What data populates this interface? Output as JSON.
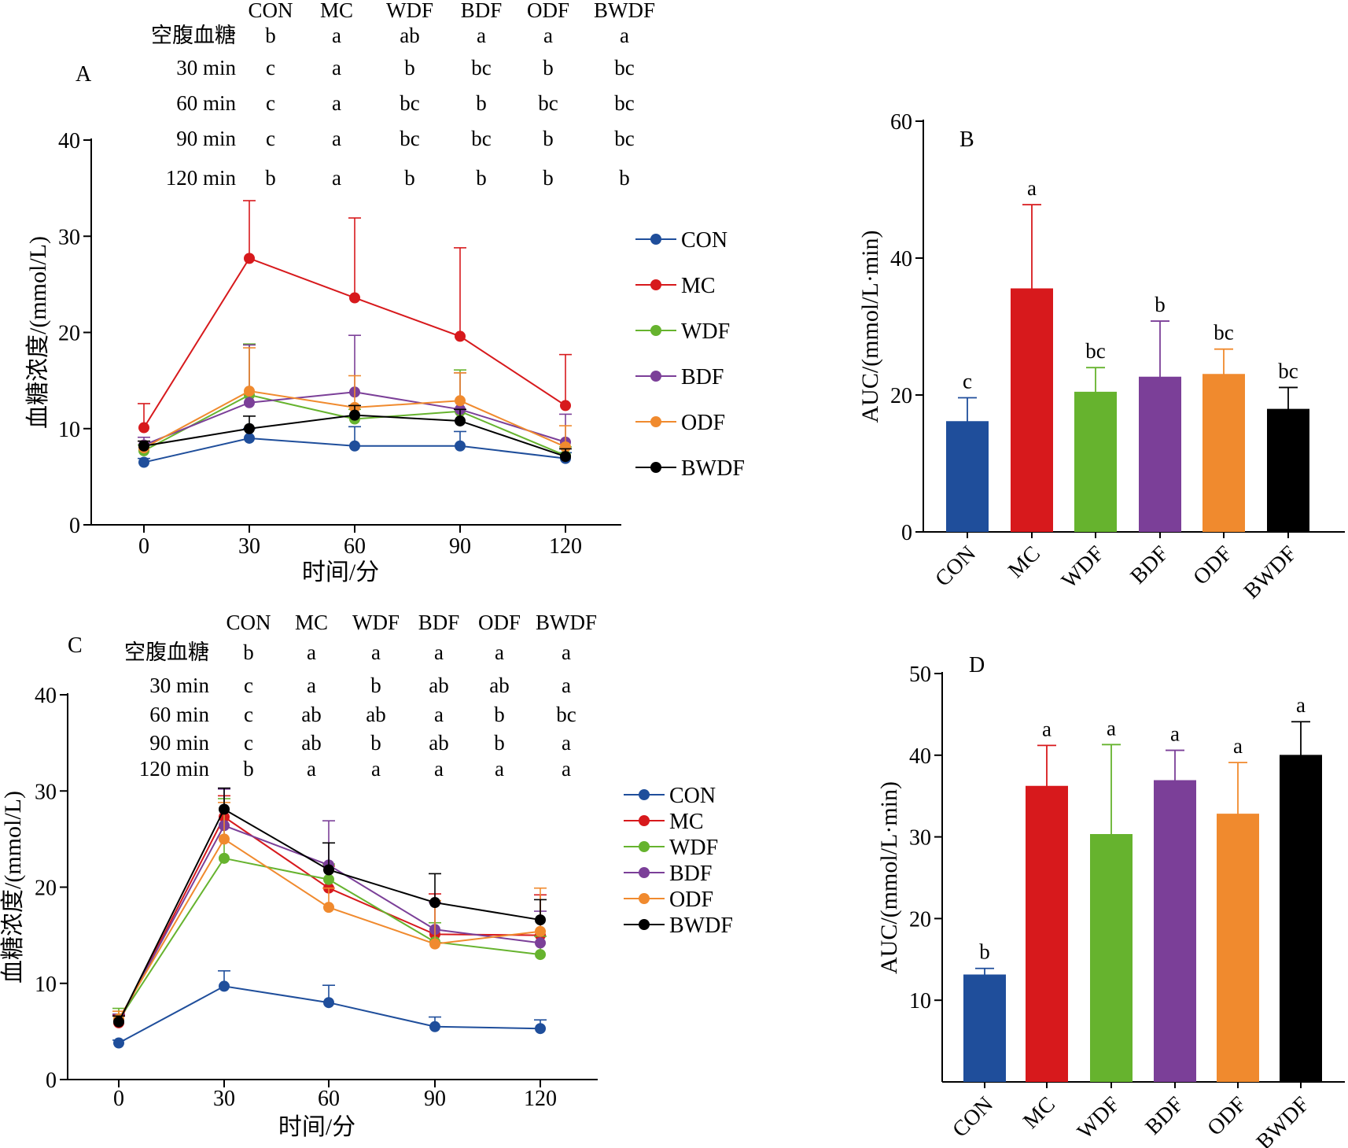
{
  "colors": {
    "CON": "#1f4e9b",
    "MC": "#d7191c",
    "WDF": "#66b32e",
    "BDF": "#7b3f98",
    "ODF": "#f08a2e",
    "BWDF": "#000000"
  },
  "chart_data": [
    {
      "panel": "A",
      "type": "line",
      "xlabel": "时间/分",
      "ylabel": "血糖浓度/(mmol/L)",
      "x": [
        0,
        30,
        60,
        90,
        120
      ],
      "xlim": [
        -15,
        135
      ],
      "ylim": [
        0,
        40
      ],
      "yticks": [
        0,
        10,
        20,
        30,
        40
      ],
      "series": [
        {
          "name": "CON",
          "values": [
            6.5,
            9.0,
            8.2,
            8.2,
            6.9
          ],
          "errors": [
            0.4,
            1.0,
            2.0,
            1.5,
            0.6
          ]
        },
        {
          "name": "MC",
          "values": [
            10.1,
            27.7,
            23.6,
            19.6,
            12.4
          ],
          "errors": [
            2.5,
            6.0,
            8.3,
            9.2,
            5.3
          ]
        },
        {
          "name": "WDF",
          "values": [
            7.7,
            13.5,
            11.0,
            11.8,
            7.2
          ],
          "errors": [
            0.6,
            5.3,
            1.0,
            4.3,
            0.9
          ]
        },
        {
          "name": "BDF",
          "values": [
            8.3,
            12.7,
            13.8,
            12.0,
            8.6
          ],
          "errors": [
            0.8,
            6.0,
            5.9,
            3.8,
            2.9
          ]
        },
        {
          "name": "ODF",
          "values": [
            8.0,
            13.9,
            12.2,
            12.9,
            8.1
          ],
          "errors": [
            0.7,
            4.5,
            3.3,
            2.9,
            2.2
          ]
        },
        {
          "name": "BWDF",
          "values": [
            8.2,
            10.0,
            11.4,
            10.8,
            7.1
          ],
          "errors": [
            0.5,
            1.3,
            1.0,
            1.2,
            0.8
          ]
        }
      ],
      "sig_header": [
        "CON",
        "MC",
        "WDF",
        "BDF",
        "ODF",
        "BWDF"
      ],
      "sig_rows": [
        {
          "label": "空腹血糖",
          "letters": [
            "b",
            "a",
            "ab",
            "a",
            "a",
            "a"
          ]
        },
        {
          "label": "30 min",
          "letters": [
            "c",
            "a",
            "b",
            "bc",
            "b",
            "bc"
          ]
        },
        {
          "label": "60 min",
          "letters": [
            "c",
            "a",
            "bc",
            "b",
            "bc",
            "bc"
          ]
        },
        {
          "label": "90 min",
          "letters": [
            "c",
            "a",
            "bc",
            "bc",
            "b",
            "bc"
          ]
        },
        {
          "label": "120 min",
          "letters": [
            "b",
            "a",
            "b",
            "b",
            "b",
            "b"
          ]
        }
      ],
      "legend": [
        "CON",
        "MC",
        "WDF",
        "BDF",
        "ODF",
        "BWDF"
      ]
    },
    {
      "panel": "B",
      "type": "bar",
      "ylabel": "AUC/(mmol/L·min)",
      "categories": [
        "CON",
        "MC",
        "WDF",
        "BDF",
        "ODF",
        "BWDF"
      ],
      "values": [
        16.0,
        35.4,
        20.3,
        22.5,
        22.9,
        17.8
      ],
      "errors": [
        3.6,
        12.4,
        3.7,
        8.3,
        3.8,
        3.3
      ],
      "letters": [
        "c",
        "a",
        "bc",
        "b",
        "bc",
        "bc"
      ],
      "ylim": [
        0,
        60
      ],
      "yticks": [
        0,
        20,
        40,
        60
      ]
    },
    {
      "panel": "C",
      "type": "line",
      "xlabel": "时间/分",
      "ylabel": "血糖浓度/(mmol/L)",
      "x": [
        0,
        30,
        60,
        90,
        120
      ],
      "xlim": [
        -15,
        135
      ],
      "ylim": [
        0,
        40
      ],
      "yticks": [
        0,
        10,
        20,
        30,
        40
      ],
      "series": [
        {
          "name": "CON",
          "values": [
            3.8,
            9.7,
            8.0,
            5.5,
            5.3
          ],
          "errors": [
            0.3,
            1.6,
            1.8,
            1.0,
            0.9
          ]
        },
        {
          "name": "MC",
          "values": [
            5.9,
            27.3,
            19.9,
            15.1,
            15.0
          ],
          "errors": [
            0.8,
            2.2,
            2.3,
            4.2,
            4.2
          ]
        },
        {
          "name": "WDF",
          "values": [
            6.2,
            23.0,
            20.8,
            14.3,
            13.0
          ],
          "errors": [
            1.2,
            6.2,
            1.6,
            2.0,
            1.9
          ]
        },
        {
          "name": "BDF",
          "values": [
            6.1,
            26.4,
            22.3,
            15.6,
            14.2
          ],
          "errors": [
            0.7,
            3.8,
            4.6,
            2.8,
            3.3
          ]
        },
        {
          "name": "ODF",
          "values": [
            6.3,
            25.0,
            17.9,
            14.1,
            15.4
          ],
          "errors": [
            0.8,
            3.8,
            2.0,
            4.5,
            4.5
          ]
        },
        {
          "name": "BWDF",
          "values": [
            6.0,
            28.1,
            21.8,
            18.4,
            16.6
          ],
          "errors": [
            0.6,
            2.2,
            2.8,
            3.0,
            2.1
          ]
        }
      ],
      "sig_header": [
        "CON",
        "MC",
        "WDF",
        "BDF",
        "ODF",
        "BWDF"
      ],
      "sig_rows": [
        {
          "label": "空腹血糖",
          "letters": [
            "b",
            "a",
            "a",
            "a",
            "a",
            "a"
          ]
        },
        {
          "label": "30 min",
          "letters": [
            "c",
            "a",
            "b",
            "ab",
            "ab",
            "a"
          ]
        },
        {
          "label": "60 min",
          "letters": [
            "c",
            "ab",
            "ab",
            "a",
            "b",
            "bc"
          ]
        },
        {
          "label": "90 min",
          "letters": [
            "c",
            "ab",
            "b",
            "ab",
            "b",
            "a"
          ]
        },
        {
          "label": "120 min",
          "letters": [
            "b",
            "a",
            "a",
            "a",
            "a",
            "a"
          ]
        }
      ],
      "legend": [
        "CON",
        "MC",
        "WDF",
        "BDF",
        "ODF",
        "BWDF"
      ]
    },
    {
      "panel": "D",
      "type": "bar",
      "ylabel": "AUC/(mmol/L·min)",
      "categories": [
        "CON",
        "MC",
        "WDF",
        "BDF",
        "ODF",
        "BWDF"
      ],
      "values": [
        13.0,
        36.1,
        30.2,
        36.8,
        32.7,
        39.9
      ],
      "errors": [
        0.9,
        5.1,
        11.1,
        3.8,
        6.4,
        4.2
      ],
      "letters": [
        "b",
        "a",
        "a",
        "a",
        "a",
        "a"
      ],
      "ylim": [
        0,
        50
      ],
      "yticks": [
        10,
        20,
        30,
        40,
        50
      ]
    }
  ]
}
